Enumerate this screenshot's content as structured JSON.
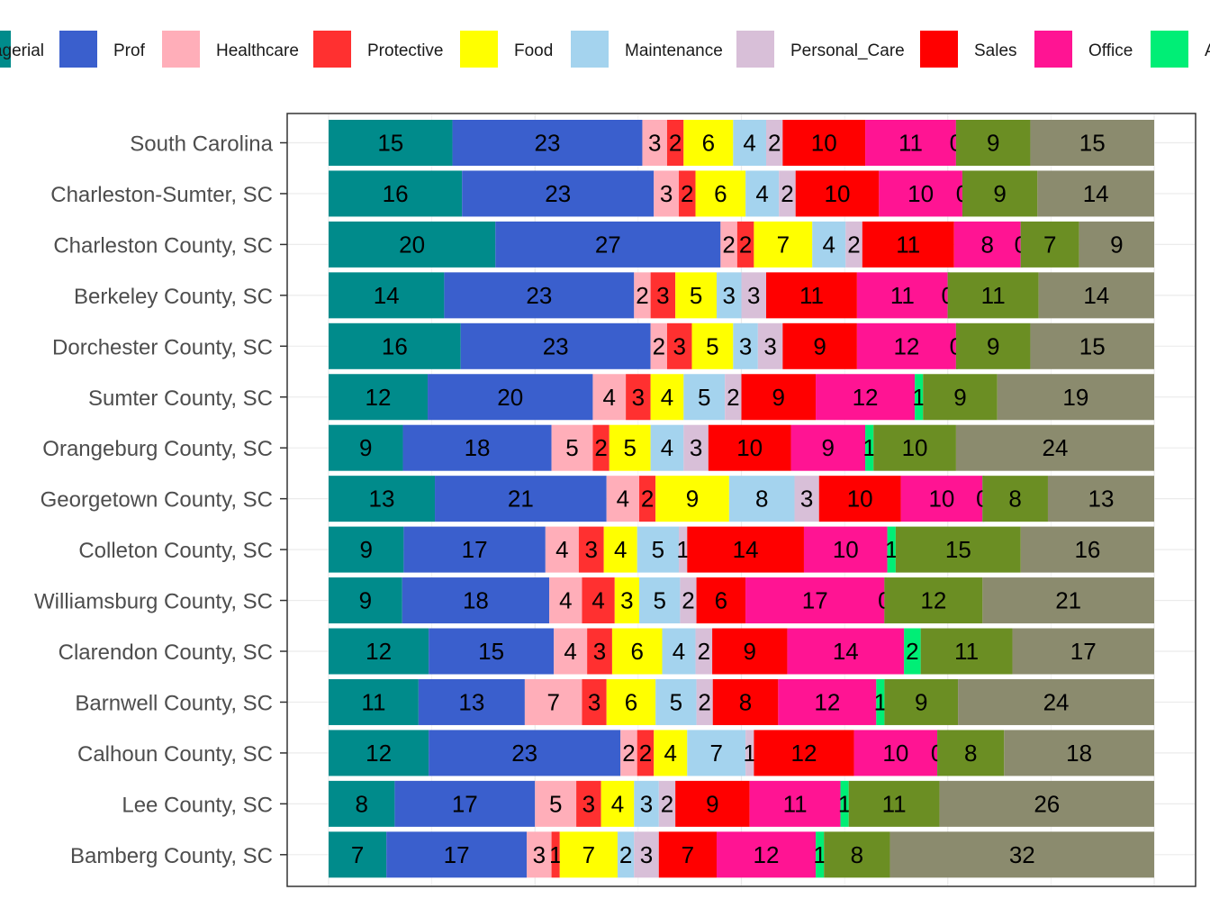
{
  "chart_data": {
    "type": "bar",
    "orientation": "horizontal",
    "stacked": true,
    "xlim": [
      0,
      100
    ],
    "grid": true,
    "legend_position": "top",
    "title": "",
    "xlabel": "",
    "ylabel": "",
    "categories": [
      "South Carolina",
      "Charleston-Sumter, SC",
      "Charleston County, SC",
      "Berkeley County, SC",
      "Dorchester County, SC",
      "Sumter County, SC",
      "Orangeburg County, SC",
      "Georgetown County, SC",
      "Colleton County, SC",
      "Williamsburg County, SC",
      "Clarendon County, SC",
      "Barnwell County, SC",
      "Calhoun County, SC",
      "Lee County, SC",
      "Bamberg County, SC"
    ],
    "series": [
      {
        "name": "Managerial",
        "color": "#008B8B",
        "values": [
          15,
          16,
          20,
          14,
          16,
          12,
          9,
          13,
          9,
          9,
          12,
          11,
          12,
          8,
          7
        ]
      },
      {
        "name": "Prof",
        "color": "#3A5FCD",
        "values": [
          23,
          23,
          27,
          23,
          23,
          20,
          18,
          21,
          17,
          18,
          15,
          13,
          23,
          17,
          17
        ]
      },
      {
        "name": "Healthcare",
        "color": "#FFAEB9",
        "values": [
          3,
          3,
          2,
          2,
          2,
          4,
          5,
          4,
          4,
          4,
          4,
          7,
          2,
          5,
          3
        ]
      },
      {
        "name": "Protective",
        "color": "#FF3030",
        "values": [
          2,
          2,
          2,
          3,
          3,
          3,
          2,
          2,
          3,
          4,
          3,
          3,
          2,
          3,
          1
        ]
      },
      {
        "name": "Food",
        "color": "#FFFF00",
        "values": [
          6,
          6,
          7,
          5,
          5,
          4,
          5,
          9,
          4,
          3,
          6,
          6,
          4,
          4,
          7
        ]
      },
      {
        "name": "Maintenance",
        "color": "#A4D3EE",
        "values": [
          4,
          4,
          4,
          3,
          3,
          5,
          4,
          8,
          5,
          5,
          4,
          5,
          7,
          3,
          2
        ]
      },
      {
        "name": "Personal_Care",
        "color": "#D8BFD8",
        "values": [
          2,
          2,
          2,
          3,
          3,
          2,
          3,
          3,
          1,
          2,
          2,
          2,
          1,
          2,
          3
        ]
      },
      {
        "name": "Sales",
        "color": "#FF0000",
        "values": [
          10,
          10,
          11,
          11,
          9,
          9,
          10,
          10,
          14,
          6,
          9,
          8,
          12,
          9,
          7
        ]
      },
      {
        "name": "Office",
        "color": "#FF1493",
        "values": [
          11,
          10,
          8,
          11,
          12,
          12,
          9,
          10,
          10,
          17,
          14,
          12,
          10,
          11,
          12
        ]
      },
      {
        "name": "A",
        "color": "#00EE76",
        "values": [
          0,
          0,
          0,
          0,
          0,
          1,
          1,
          0,
          1,
          0,
          2,
          1,
          0,
          1,
          1
        ]
      },
      {
        "name": "",
        "color": "#6B8E23",
        "values": [
          9,
          9,
          7,
          11,
          9,
          9,
          10,
          8,
          15,
          12,
          11,
          9,
          8,
          11,
          8
        ]
      },
      {
        "name": "",
        "color": "#8B8B6E",
        "values": [
          15,
          14,
          9,
          14,
          15,
          19,
          24,
          13,
          16,
          21,
          17,
          24,
          18,
          26,
          32
        ]
      }
    ],
    "legend_entries": [
      {
        "label": "agerial",
        "color": "#008B8B"
      },
      {
        "label": "Prof",
        "color": "#3A5FCD"
      },
      {
        "label": "Healthcare",
        "color": "#FFAEB9"
      },
      {
        "label": "Protective",
        "color": "#FF3030"
      },
      {
        "label": "Food",
        "color": "#FFFF00"
      },
      {
        "label": "Maintenance",
        "color": "#A4D3EE"
      },
      {
        "label": "Personal_Care",
        "color": "#D8BFD8"
      },
      {
        "label": "Sales",
        "color": "#FF0000"
      },
      {
        "label": "Office",
        "color": "#FF1493"
      },
      {
        "label": "A",
        "color": "#00EE76"
      }
    ]
  }
}
